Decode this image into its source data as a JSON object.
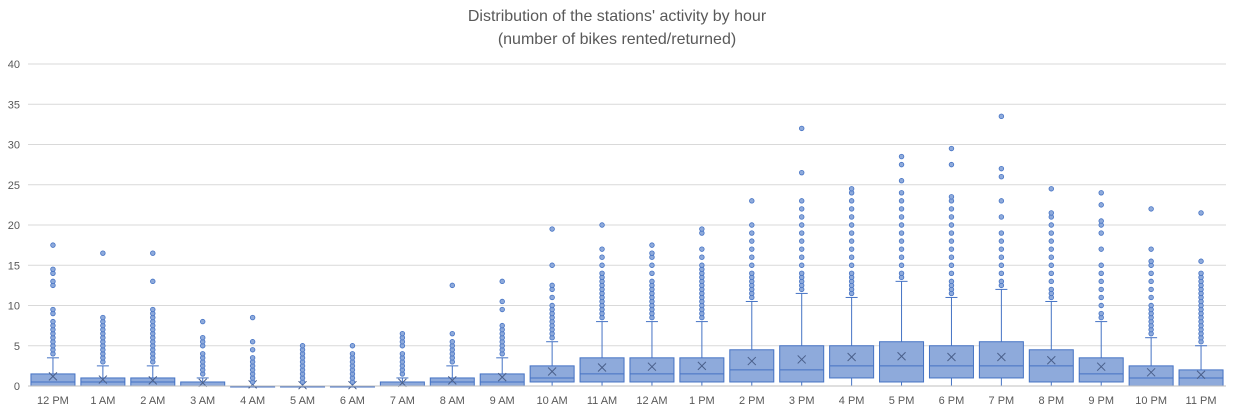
{
  "chart_data": {
    "type": "boxplot",
    "title": "Distribution of the stations' activity by hour",
    "subtitle": "(number of bikes rented/returned)",
    "xlabel": "",
    "ylabel": "",
    "ylim": [
      0,
      40
    ],
    "yticks": [
      0,
      5,
      10,
      15,
      20,
      25,
      30,
      35,
      40
    ],
    "grid": true,
    "legend": "none",
    "colors": {
      "box_fill": "#8eaadb",
      "box_stroke": "#4472c4",
      "outlier": "#8eaadb"
    },
    "categories": [
      "12 PM",
      "1 AM",
      "2 AM",
      "3 AM",
      "4 AM",
      "5 AM",
      "6 AM",
      "7 AM",
      "8 AM",
      "9 AM",
      "10 AM",
      "11 AM",
      "12 AM",
      "1 PM",
      "2 PM",
      "3 PM",
      "4 PM",
      "5 PM",
      "6 PM",
      "7 PM",
      "8 PM",
      "9 PM",
      "10 PM",
      "11 PM"
    ],
    "boxes": [
      {
        "min": 0,
        "q1": 0,
        "median": 0.5,
        "q3": 1.5,
        "max": 3.5,
        "mean": 1.2,
        "outliers": [
          4,
          4.5,
          5,
          5.5,
          6,
          6.5,
          7,
          7.5,
          8,
          9,
          9.5,
          12.5,
          13,
          14,
          14.5,
          17.5
        ]
      },
      {
        "min": 0,
        "q1": 0,
        "median": 0.5,
        "q3": 1,
        "max": 2.5,
        "mean": 0.8,
        "outliers": [
          3,
          3.5,
          4,
          4.5,
          5,
          5.5,
          6,
          6.5,
          7,
          7.5,
          8,
          8.5,
          16.5
        ]
      },
      {
        "min": 0,
        "q1": 0,
        "median": 0.5,
        "q3": 1,
        "max": 2.5,
        "mean": 0.7,
        "outliers": [
          3,
          3.5,
          4,
          4.5,
          5,
          5.5,
          6,
          6.5,
          7,
          7.5,
          8,
          8.5,
          9,
          9.5,
          13,
          16.5
        ]
      },
      {
        "min": 0,
        "q1": 0,
        "median": 0,
        "q3": 0.5,
        "max": 1,
        "mean": 0.4,
        "outliers": [
          1.5,
          2,
          2.5,
          3,
          3.5,
          4,
          5,
          5.5,
          6,
          8
        ]
      },
      {
        "min": 0,
        "q1": 0,
        "median": 0,
        "q3": 0,
        "max": 0,
        "mean": 0.2,
        "outliers": [
          0.5,
          1,
          1.5,
          2,
          2.5,
          3,
          3.5,
          4.5,
          5.5,
          8.5
        ]
      },
      {
        "min": 0,
        "q1": 0,
        "median": 0,
        "q3": 0,
        "max": 0,
        "mean": 0.1,
        "outliers": [
          0.5,
          1,
          1.5,
          2,
          2.5,
          3,
          3.5,
          4,
          4.5,
          5
        ]
      },
      {
        "min": 0,
        "q1": 0,
        "median": 0,
        "q3": 0,
        "max": 0,
        "mean": 0.1,
        "outliers": [
          0.5,
          1,
          1.5,
          2,
          2.5,
          3,
          3.5,
          4,
          5
        ]
      },
      {
        "min": 0,
        "q1": 0,
        "median": 0,
        "q3": 0.5,
        "max": 1,
        "mean": 0.4,
        "outliers": [
          1.5,
          2,
          2.5,
          3,
          3.5,
          4,
          5,
          5.5,
          6,
          6.5
        ]
      },
      {
        "min": 0,
        "q1": 0,
        "median": 0.5,
        "q3": 1,
        "max": 2.5,
        "mean": 0.7,
        "outliers": [
          3,
          3.5,
          4,
          4.5,
          5,
          5.5,
          6.5,
          12.5
        ]
      },
      {
        "min": 0,
        "q1": 0,
        "median": 0.5,
        "q3": 1.5,
        "max": 3.5,
        "mean": 1.1,
        "outliers": [
          4,
          4.5,
          5,
          5.5,
          6,
          6.5,
          7,
          7.5,
          9.5,
          10.5,
          13
        ]
      },
      {
        "min": 0,
        "q1": 0.5,
        "median": 1,
        "q3": 2.5,
        "max": 5.5,
        "mean": 1.8,
        "outliers": [
          6,
          6.5,
          7,
          7.5,
          8,
          8.5,
          9,
          9.5,
          10,
          11,
          12,
          12.5,
          15,
          19.5
        ]
      },
      {
        "min": 0,
        "q1": 0.5,
        "median": 1.5,
        "q3": 3.5,
        "max": 8,
        "mean": 2.3,
        "outliers": [
          8.5,
          9,
          9.5,
          10,
          10.5,
          11,
          11.5,
          12,
          12.5,
          13,
          13.5,
          14,
          15,
          16,
          17,
          20
        ]
      },
      {
        "min": 0,
        "q1": 0.5,
        "median": 1.5,
        "q3": 3.5,
        "max": 8,
        "mean": 2.4,
        "outliers": [
          8.5,
          9,
          9.5,
          10,
          10.5,
          11,
          11.5,
          12,
          12.5,
          13,
          14,
          15,
          16,
          16.5,
          17.5
        ]
      },
      {
        "min": 0,
        "q1": 0.5,
        "median": 1.5,
        "q3": 3.5,
        "max": 8,
        "mean": 2.5,
        "outliers": [
          8.5,
          9,
          9.5,
          10,
          10.5,
          11,
          11.5,
          12,
          12.5,
          13,
          13.5,
          14,
          14.5,
          15,
          16,
          17,
          19,
          19.5
        ]
      },
      {
        "min": 0,
        "q1": 0.5,
        "median": 2,
        "q3": 4.5,
        "max": 10.5,
        "mean": 3.1,
        "outliers": [
          11,
          11.5,
          12,
          12.5,
          13,
          13.5,
          14,
          15,
          16,
          17,
          18,
          19,
          20,
          23
        ]
      },
      {
        "min": 0,
        "q1": 0.5,
        "median": 2,
        "q3": 5,
        "max": 11.5,
        "mean": 3.3,
        "outliers": [
          12,
          12.5,
          13,
          13.5,
          14,
          15,
          16,
          17,
          18,
          19,
          20,
          21,
          22,
          23,
          26.5,
          32
        ]
      },
      {
        "min": 0,
        "q1": 1,
        "median": 2.5,
        "q3": 5,
        "max": 11,
        "mean": 3.6,
        "outliers": [
          11.5,
          12,
          12.5,
          13,
          13.5,
          14,
          15,
          16,
          17,
          18,
          19,
          20,
          21,
          22,
          23,
          24,
          24.5
        ]
      },
      {
        "min": 0,
        "q1": 0.5,
        "median": 2.5,
        "q3": 5.5,
        "max": 13,
        "mean": 3.7,
        "outliers": [
          13.5,
          14,
          15,
          16,
          17,
          18,
          19,
          20,
          21,
          22,
          23,
          24,
          25.5,
          27.5,
          28.5
        ]
      },
      {
        "min": 0,
        "q1": 1,
        "median": 2.5,
        "q3": 5,
        "max": 11,
        "mean": 3.6,
        "outliers": [
          11.5,
          12,
          12.5,
          13,
          14,
          15,
          16,
          17,
          18,
          19,
          20,
          21,
          22,
          23,
          23.5,
          27.5,
          29.5
        ]
      },
      {
        "min": 0,
        "q1": 1,
        "median": 2.5,
        "q3": 5.5,
        "max": 12,
        "mean": 3.6,
        "outliers": [
          12.5,
          13,
          14,
          15,
          16,
          17,
          18,
          19,
          21,
          23,
          26,
          27,
          33.5
        ]
      },
      {
        "min": 0,
        "q1": 0.5,
        "median": 2.5,
        "q3": 4.5,
        "max": 10.5,
        "mean": 3.2,
        "outliers": [
          11,
          11.5,
          12,
          13,
          14,
          15,
          16,
          17,
          18,
          19,
          20,
          21,
          21.5,
          24.5
        ]
      },
      {
        "min": 0,
        "q1": 0.5,
        "median": 1.5,
        "q3": 3.5,
        "max": 8,
        "mean": 2.4,
        "outliers": [
          8.5,
          9,
          10,
          11,
          12,
          13,
          14,
          15,
          17,
          19,
          20,
          20.5,
          22.5,
          24
        ]
      },
      {
        "min": 0,
        "q1": 0,
        "median": 1,
        "q3": 2.5,
        "max": 6,
        "mean": 1.7,
        "outliers": [
          6.5,
          7,
          7.5,
          8,
          8.5,
          9,
          9.5,
          10,
          11,
          12,
          13,
          14,
          15,
          15.5,
          17,
          22
        ]
      },
      {
        "min": 0,
        "q1": 0,
        "median": 1,
        "q3": 2,
        "max": 5,
        "mean": 1.4,
        "outliers": [
          5.5,
          6,
          6.5,
          7,
          7.5,
          8,
          8.5,
          9,
          9.5,
          10,
          10.5,
          11,
          11.5,
          12,
          12.5,
          13,
          13.5,
          14,
          15.5,
          21.5
        ]
      }
    ]
  }
}
